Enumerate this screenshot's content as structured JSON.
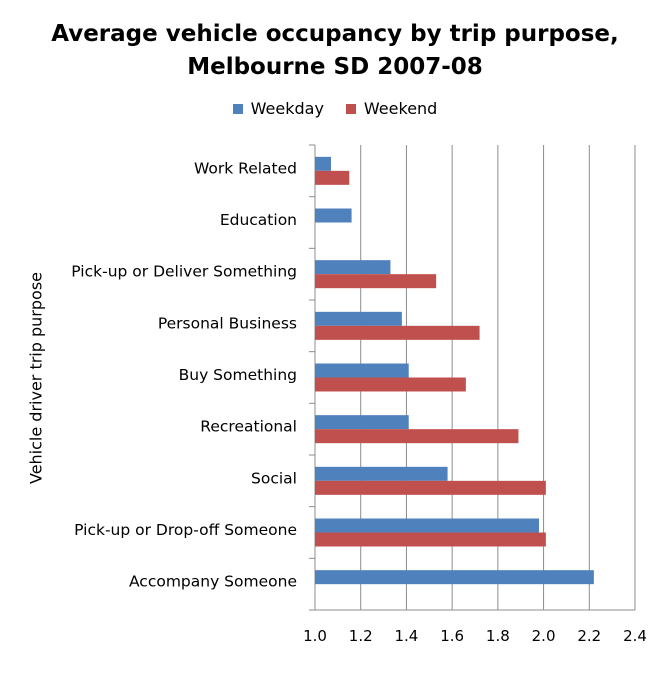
{
  "chart_data": {
    "type": "bar",
    "orientation": "horizontal",
    "title_line1": "Average vehicle occupancy by trip purpose,",
    "title_line2": "Melbourne SD 2007-08",
    "ylabel": "Vehicle driver trip purpose",
    "xlabel": "",
    "xlim": [
      1.0,
      2.4
    ],
    "x_ticks": [
      "1.0",
      "1.2",
      "1.4",
      "1.6",
      "1.8",
      "2.0",
      "2.2",
      "2.4"
    ],
    "grid": true,
    "legend_position": "top",
    "categories": [
      "Work Related",
      "Education",
      "Pick-up or Deliver Something",
      "Personal Business",
      "Buy Something",
      "Recreational",
      "Social",
      "Pick-up or Drop-off Someone",
      "Accompany Someone"
    ],
    "series": [
      {
        "name": "Weekday",
        "color": "#4f81bd",
        "values": [
          1.07,
          1.16,
          1.33,
          1.38,
          1.41,
          1.41,
          1.58,
          1.98,
          2.22
        ]
      },
      {
        "name": "Weekend",
        "color": "#c0504d",
        "values": [
          1.15,
          null,
          1.53,
          1.72,
          1.66,
          1.89,
          2.01,
          2.01,
          null
        ]
      }
    ]
  }
}
